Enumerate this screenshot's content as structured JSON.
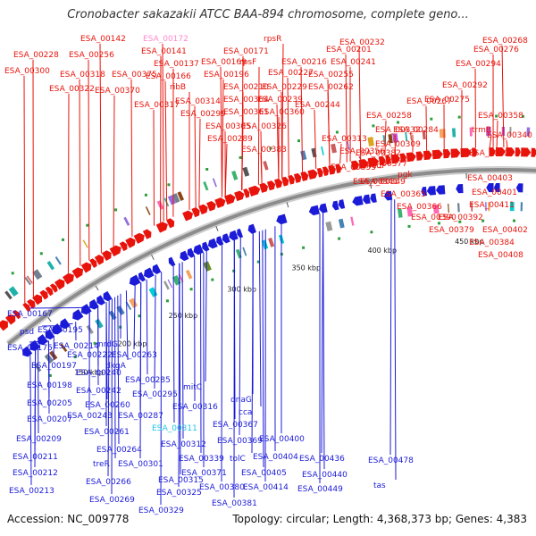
{
  "title": "Cronobacter sakazakii ATCC BAA-894 chromosome, complete geno...",
  "footer": {
    "accession": "Accession: NC_009778",
    "topology": "Topology: circular; Length: 4,368,373 bp; Genes: 4,383"
  },
  "colors": {
    "forward": "#e8140c",
    "reverse": "#1b1bd8",
    "highlight": "#ff88cc",
    "selected": "#22c4e6",
    "backbone": "#8c8c8c"
  },
  "kbp_ticks": [
    "150 kbp",
    "200 kbp",
    "250 kbp",
    "300 kbp",
    "350 kbp",
    "400 kbp",
    "450 kbp",
    "500 kbp"
  ],
  "forward_labels": [
    "ESA_00142",
    "ESA_00172",
    "rpsR",
    "ESA_00228",
    "ESA_00256",
    "ESA_00141",
    "ESA_00171",
    "ESA_00201",
    "ESA_00232",
    "ESA_00268",
    "ESA_00300",
    "ESA_00318",
    "ESA_00375",
    "ESA_00137",
    "ESA_00169",
    "rpsF",
    "ESA_00216",
    "ESA_00241",
    "ESA_00276",
    "ESA_00322",
    "ESA_00370",
    "ESA_00166",
    "ESA_00196",
    "ESA_00227",
    "ESA_00255",
    "ESA_00294",
    "ESA_00317",
    "ribB",
    "ESA_00210",
    "ESA_00229",
    "ESA_00262",
    "ESA_00292",
    "ESA_00314",
    "ESA_00364",
    "ESA_00239",
    "ESA_00267",
    "ESA_00299",
    "ESA_00361",
    "ESA_00244",
    "ESA_00275",
    "ESA_00305",
    "ESA_00326",
    "ESA_00360",
    "ESA_00258",
    "ESA_00289",
    "ESA_00313",
    "ESA_00332",
    "ESA_00358",
    "ESA_00383",
    "ESA_00284",
    "trmB",
    "ESA_00356",
    "ESA_00382",
    "ESA_00309",
    "ESA_00340",
    "ESA_00353",
    "ESA_00377",
    "pgk",
    "ESA_00327",
    "ESA_00349",
    "nudF",
    "ESA_00403",
    "ESA_00341",
    "ESA_00365",
    "ESA_00401",
    "ESA_00366",
    "ESA_00390",
    "ESA_00392",
    "ESA_00379",
    "ESA_00402",
    "ESA_00411",
    "ESA_00384",
    "ESA_00408",
    "ESA_00406",
    "xerD",
    "ESA_00419",
    "ESA_00431"
  ],
  "reverse_labels": [
    "ESA_00167",
    "psd",
    "ESA_00195",
    "ESA_00175",
    "ESA_00214",
    "ESA_00222",
    "ESA_00197",
    "nrdG",
    "ESA_00263",
    "dkgA",
    "ESA_00240",
    "ESA_00198",
    "ESA_00242",
    "ESA_00285",
    "ESA_00205",
    "ESA_00260",
    "ESA_00295",
    "mitC",
    "ESA_00207",
    "ESA_00243",
    "ESA_00287",
    "ESA_00316",
    "dnaG",
    "cca",
    "ESA_00261",
    "ESA_00311",
    "ESA_00367",
    "ESA_00209",
    "ESA_00264",
    "ESA_00312",
    "ESA_00369",
    "ESA_00400",
    "ESA_00211",
    "treR",
    "ESA_00301",
    "ESA_00339",
    "tolC",
    "ESA_00404",
    "ESA_00436",
    "ESA_00478",
    "ESA_00212",
    "ESA_00371",
    "ESA_00405",
    "ESA_00440",
    "ESA_00266",
    "ESA_00315",
    "ESA_00380",
    "ESA_00414",
    "ESA_00449",
    "tas",
    "ESA_00213",
    "ESA_00269",
    "ESA_00325",
    "ESA_00381",
    "ESA_00329"
  ]
}
